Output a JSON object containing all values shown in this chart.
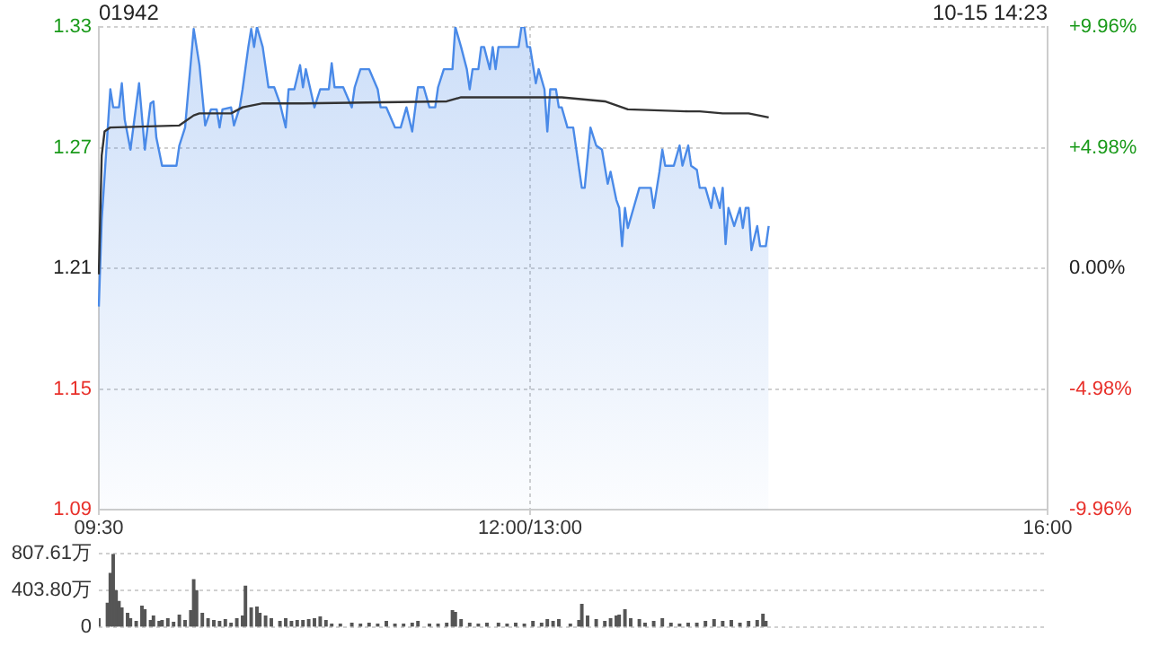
{
  "chart_data": [
    {
      "type": "line",
      "title": "01942",
      "annotations": [
        "10-15 14:23"
      ],
      "categories": [
        "09:30",
        null,
        null,
        null,
        null,
        null,
        null,
        null,
        null,
        null,
        null,
        null,
        null,
        null,
        null,
        null,
        null,
        null,
        null,
        null,
        null,
        null,
        null,
        null,
        null,
        null,
        null,
        null,
        null,
        null,
        null,
        null,
        null,
        null,
        null,
        null,
        null,
        null,
        null,
        null,
        null,
        null,
        null,
        null,
        null,
        null,
        null,
        null,
        null,
        null,
        null,
        null,
        null,
        null,
        null,
        null,
        null,
        null,
        null,
        null,
        null,
        null,
        null,
        null,
        null,
        null,
        null,
        null,
        null,
        null,
        null,
        null,
        null,
        null,
        null,
        null,
        null,
        null,
        null,
        null,
        null,
        null,
        null,
        null,
        null,
        null,
        null,
        null,
        null,
        null,
        null,
        null,
        null,
        null,
        null,
        null,
        null,
        null,
        null,
        null,
        null,
        null,
        null,
        null,
        null,
        null,
        null,
        null,
        null,
        null,
        null,
        null,
        null,
        null,
        null,
        null,
        null,
        null,
        null,
        null,
        null,
        null,
        null,
        null,
        null,
        null,
        null,
        null,
        null,
        null,
        null,
        null,
        null,
        null,
        null,
        null,
        null,
        null,
        null,
        null,
        null,
        null,
        null,
        null,
        null,
        null,
        null,
        null,
        null,
        null,
        "12:00/13:00",
        null,
        null,
        null,
        null,
        null,
        null,
        null,
        null,
        null,
        null,
        null,
        null,
        null,
        null,
        null,
        null,
        null,
        null,
        null,
        null,
        null,
        null,
        null,
        null,
        null,
        null,
        null,
        null,
        null,
        null,
        null,
        null,
        null,
        null,
        null,
        null,
        null,
        null,
        null,
        null,
        null,
        null,
        null,
        null,
        null,
        null,
        null,
        null,
        null,
        null,
        null,
        null,
        null,
        null,
        null,
        null,
        null,
        null,
        null,
        null,
        null,
        null,
        null,
        null,
        null,
        null,
        null,
        null,
        null,
        null,
        null,
        null,
        null,
        null,
        null,
        null,
        null,
        null,
        null,
        null,
        null,
        null,
        null,
        null,
        null,
        null,
        null,
        null,
        null,
        null,
        null,
        null,
        null,
        null,
        null,
        null,
        null,
        null,
        null,
        null,
        null,
        null,
        null,
        null,
        null,
        null,
        null,
        null,
        null,
        null,
        null,
        null,
        null,
        null,
        null,
        null,
        null,
        null,
        null,
        null,
        null,
        null,
        null,
        null,
        null,
        null,
        null,
        null,
        null,
        null,
        null,
        null,
        null,
        null,
        null,
        null,
        null,
        null,
        null,
        null,
        null,
        null,
        null,
        null,
        null,
        null,
        null,
        null,
        null,
        null,
        null,
        null,
        null,
        null,
        null,
        null,
        null,
        null,
        null,
        null,
        null,
        null,
        null,
        null,
        null,
        null,
        null,
        null,
        null,
        null,
        null,
        null,
        null,
        null,
        null,
        null,
        null,
        null,
        null,
        "16:00"
      ],
      "ylim": [
        1.09,
        1.33
      ],
      "yticks": [
        1.09,
        1.15,
        1.21,
        1.27,
        1.33
      ],
      "y2lim": [
        -9.96,
        9.96
      ],
      "y2ticks": [
        {
          "value": -9.96,
          "label": "-9.96%"
        },
        {
          "value": -4.98,
          "label": "-4.98%"
        },
        {
          "value": 0,
          "label": "0.00%"
        },
        {
          "value": 4.98,
          "label": "+4.98%"
        },
        {
          "value": 9.96,
          "label": "+9.96%"
        }
      ],
      "grid": true,
      "marker": "none",
      "line_style": "solid",
      "series": [
        {
          "type": "area",
          "color": "#4a8ae8",
          "values": [
            1.191,
            1.234,
            null,
            null,
            1.299,
            1.29,
            null,
            1.29,
            1.302,
            1.284,
            null,
            1.269,
            null,
            null,
            1.302,
            null,
            1.269,
            null,
            1.292,
            1.293,
            1.275,
            null,
            1.261,
            null,
            null,
            null,
            null,
            1.261,
            1.271,
            null,
            1.28,
            null,
            null,
            1.329,
            null,
            1.311,
            null,
            1.281,
            null,
            1.289,
            null,
            1.289,
            1.28,
            1.289,
            null,
            null,
            1.29,
            1.281,
            null,
            1.29,
            1.299,
            null,
            1.32,
            1.329,
            1.32,
            1.33,
            null,
            1.32,
            null,
            1.3,
            null,
            1.3,
            null,
            1.292,
            null,
            1.28,
            1.299,
            null,
            1.299,
            null,
            1.311,
            1.3,
            1.309,
            null,
            null,
            1.29,
            null,
            1.299,
            null,
            null,
            1.299,
            1.312,
            1.3,
            null,
            null,
            1.3,
            null,
            null,
            1.29,
            1.3,
            null,
            1.309,
            null,
            null,
            1.309,
            null,
            null,
            1.299,
            1.29,
            null,
            1.29,
            null,
            null,
            1.28,
            null,
            1.28,
            null,
            1.29,
            null,
            1.278,
            null,
            1.3,
            null,
            1.3,
            null,
            1.29,
            null,
            1.29,
            1.3,
            null,
            1.309,
            null,
            null,
            1.309,
            1.33,
            null,
            1.32,
            null,
            1.309,
            1.299,
            1.309,
            null,
            1.309,
            1.32,
            1.32,
            null,
            1.309,
            1.32,
            1.309,
            1.32,
            null,
            null,
            null,
            null,
            null,
            null,
            1.32,
            1.33,
            1.33,
            1.32,
            1.32,
            null,
            1.302,
            1.309,
            null,
            1.299,
            1.278,
            1.299,
            null,
            1.299,
            1.29,
            1.29,
            null,
            1.28,
            null,
            1.28,
            null,
            null,
            1.25,
            1.25,
            null,
            1.28,
            null,
            1.271,
            null,
            1.269,
            null,
            1.252,
            1.258,
            null,
            1.244,
            1.24,
            1.221,
            1.24,
            1.23,
            null,
            1.24,
            null,
            1.25,
            null,
            null,
            null,
            1.25,
            1.24,
            null,
            1.258,
            1.269,
            1.261,
            null,
            null,
            1.261,
            null,
            1.271,
            1.261,
            null,
            1.271,
            1.261,
            null,
            1.259,
            1.25,
            null,
            1.25,
            null,
            1.24,
            1.25,
            null,
            1.24,
            1.25,
            1.222,
            1.24,
            null,
            1.231,
            null,
            1.24,
            1.23,
            1.24,
            1.24,
            1.219,
            null,
            1.231,
            1.221,
            null,
            1.221,
            1.231,
            null,
            null,
            null,
            null,
            null,
            null,
            null,
            null,
            null,
            null,
            null,
            null,
            null,
            null,
            null,
            null,
            null,
            null,
            null,
            null,
            null,
            null,
            null,
            null,
            null,
            null,
            null,
            null,
            null,
            null,
            null,
            null,
            null,
            null,
            null,
            null,
            null,
            null,
            null,
            null,
            null,
            null,
            null,
            null,
            null,
            null,
            null,
            null,
            null,
            null,
            null,
            null,
            null,
            null,
            null,
            null,
            null,
            null,
            null,
            null,
            null,
            null,
            null,
            null,
            null,
            null,
            null,
            null,
            null,
            null,
            null,
            null,
            null,
            null,
            null,
            null,
            null,
            null,
            null,
            null,
            null,
            null,
            null,
            null,
            null,
            null,
            null,
            null,
            null,
            null,
            null,
            null,
            null,
            null,
            null,
            null,
            null
          ]
        },
        {
          "type": "line",
          "color": "#333333",
          "values": [
            1.207,
            1.266,
            1.278,
            null,
            1.28,
            null,
            null,
            null,
            null,
            null,
            null,
            null,
            null,
            null,
            null,
            null,
            null,
            null,
            null,
            null,
            null,
            null,
            null,
            null,
            null,
            null,
            null,
            null,
            1.281,
            null,
            null,
            null,
            null,
            1.286,
            null,
            1.287,
            null,
            null,
            null,
            null,
            null,
            null,
            null,
            null,
            null,
            null,
            1.287,
            null,
            null,
            null,
            1.29,
            null,
            null,
            null,
            null,
            null,
            null,
            1.292,
            null,
            null,
            null,
            null,
            null,
            null,
            null,
            null,
            null,
            null,
            null,
            null,
            null,
            1.292,
            null,
            null,
            null,
            null,
            null,
            null,
            null,
            null,
            null,
            null,
            null,
            null,
            null,
            null,
            null,
            null,
            null,
            null,
            null,
            null,
            null,
            null,
            null,
            null,
            null,
            null,
            null,
            null,
            null,
            null,
            null,
            null,
            null,
            null,
            null,
            null,
            null,
            null,
            null,
            null,
            null,
            null,
            null,
            null,
            null,
            null,
            null,
            null,
            null,
            1.293,
            null,
            null,
            null,
            null,
            1.295,
            null,
            null,
            null,
            null,
            null,
            null,
            null,
            null,
            null,
            null,
            null,
            null,
            null,
            null,
            null,
            null,
            null,
            null,
            null,
            null,
            null,
            null,
            null,
            null,
            null,
            null,
            null,
            null,
            null,
            null,
            null,
            null,
            null,
            null,
            1.295,
            null,
            null,
            null,
            null,
            null,
            null,
            null,
            null,
            null,
            null,
            null,
            null,
            null,
            null,
            1.293,
            null,
            null,
            null,
            null,
            null,
            1.29,
            null,
            1.289,
            null,
            null,
            null,
            null,
            null,
            null,
            null,
            null,
            null,
            null,
            null,
            null,
            null,
            null,
            null,
            null,
            null,
            null,
            null,
            null,
            1.288,
            null,
            null,
            null,
            1.288,
            null,
            null,
            null,
            null,
            null,
            null,
            null,
            1.287,
            null,
            null,
            null,
            null,
            null,
            null,
            null,
            null,
            1.287,
            null,
            null,
            null,
            null,
            null,
            null,
            1.285,
            null,
            null,
            null,
            null,
            null,
            null,
            null,
            null,
            null,
            null,
            null,
            null,
            null,
            null,
            null,
            null,
            null,
            null,
            null,
            null,
            null,
            null,
            null,
            null,
            null,
            null,
            null,
            null,
            null,
            null,
            null,
            null,
            null,
            null,
            null,
            null,
            null,
            null,
            null,
            null,
            null,
            null,
            null,
            null,
            null,
            null,
            null,
            null,
            null,
            null,
            null,
            null,
            null,
            null,
            null,
            null,
            null,
            null,
            null,
            null,
            null,
            null,
            null,
            null,
            null,
            null,
            null,
            null,
            null,
            null,
            null,
            null,
            null,
            null,
            null,
            null,
            null,
            null,
            null,
            null,
            null,
            null,
            null,
            null,
            null,
            null,
            null,
            null,
            null,
            null,
            null,
            null,
            null,
            null,
            null,
            null,
            null
          ]
        }
      ]
    },
    {
      "type": "bar",
      "color": "#555555",
      "ylim": [
        0,
        807.61
      ],
      "yticks": [
        0,
        {
          "value": 403.8,
          "label": "403.80万"
        },
        {
          "value": 807.61,
          "label": "807.61万"
        }
      ],
      "grid": "y",
      "tick_labels": "y",
      "categories": [
        null,
        null,
        null,
        null,
        null,
        null,
        null,
        null,
        null,
        null,
        null,
        null,
        null,
        null,
        null,
        null,
        null,
        null,
        null,
        null,
        null,
        null,
        null,
        null,
        null,
        null,
        null,
        null,
        null,
        null,
        null,
        null,
        null,
        null,
        null,
        null,
        null,
        null,
        null,
        null,
        null,
        null,
        null,
        null,
        null,
        null,
        null,
        null,
        null,
        null,
        null,
        null,
        null,
        null,
        null,
        null,
        null,
        null,
        null,
        null,
        null,
        null,
        null,
        null,
        null,
        null,
        null,
        null,
        null,
        null,
        null,
        null,
        null,
        null,
        null,
        null,
        null,
        null,
        null,
        null,
        null,
        null,
        null,
        null,
        null,
        null,
        null,
        null,
        null,
        null,
        null,
        null,
        null,
        null,
        null,
        null,
        null,
        null,
        null,
        null,
        null,
        null,
        null,
        null,
        null,
        null,
        null,
        null,
        null,
        null,
        null,
        null,
        null,
        null,
        null,
        null,
        null,
        null,
        null,
        null,
        null,
        null,
        null,
        null,
        null,
        null,
        null,
        null,
        null,
        null,
        null,
        null,
        null,
        null,
        null,
        null,
        null,
        null,
        null,
        null,
        null,
        null,
        null,
        null,
        null,
        null,
        null,
        null,
        null,
        null,
        null,
        null,
        null,
        null,
        null,
        null,
        null,
        null,
        null,
        null,
        null,
        null,
        null,
        null,
        null,
        null,
        null,
        null,
        null,
        null,
        null,
        null,
        null,
        null,
        null,
        null,
        null,
        null,
        null,
        null,
        null,
        null,
        null,
        null,
        null,
        null,
        null,
        null,
        null,
        null,
        null,
        null,
        null,
        null,
        null,
        null,
        null,
        null,
        null,
        null,
        null,
        null,
        null,
        null,
        null,
        null,
        null,
        null,
        null,
        null,
        null,
        null,
        null,
        null,
        null,
        null,
        null,
        null,
        null,
        null,
        null,
        null,
        null,
        null,
        null,
        null,
        null,
        null,
        null,
        null,
        null,
        null,
        null,
        null,
        null,
        null,
        null,
        null,
        null,
        null,
        null,
        null,
        null,
        null,
        null,
        null,
        null,
        null,
        null,
        null,
        null,
        null,
        null,
        null,
        null,
        null,
        null,
        null,
        null,
        null,
        null,
        null,
        null,
        null,
        null,
        null,
        null,
        null,
        null,
        null,
        null,
        null,
        null,
        null,
        null,
        null,
        null,
        null,
        null,
        null,
        null,
        null,
        null,
        null,
        null,
        null,
        null,
        null,
        null,
        null,
        null,
        null,
        null,
        null,
        null,
        null,
        null,
        null,
        null,
        null,
        null,
        null,
        null,
        null,
        null,
        null,
        null,
        null,
        null,
        null,
        null,
        null,
        null,
        null,
        null,
        null,
        null,
        null,
        null,
        null,
        null,
        null,
        null,
        null,
        null,
        null,
        null,
        null,
        null,
        null,
        null
      ],
      "values": [
        90,
        null,
        null,
        260,
        590,
        800,
        400,
        280,
        210,
        null,
        150,
        90,
        null,
        60,
        null,
        230,
        190,
        null,
        70,
        120,
        null,
        60,
        70,
        null,
        90,
        null,
        50,
        null,
        130,
        null,
        70,
        null,
        180,
        520,
        400,
        null,
        150,
        null,
        90,
        null,
        70,
        null,
        60,
        null,
        80,
        null,
        40,
        null,
        90,
        null,
        120,
        450,
        null,
        210,
        null,
        220,
        150,
        null,
        120,
        null,
        90,
        null,
        null,
        60,
        null,
        90,
        null,
        60,
        null,
        70,
        null,
        70,
        null,
        80,
        null,
        90,
        null,
        110,
        null,
        70,
        null,
        30,
        null,
        null,
        30,
        null,
        null,
        null,
        40,
        null,
        null,
        30,
        null,
        null,
        40,
        null,
        null,
        30,
        null,
        null,
        60,
        null,
        null,
        30,
        null,
        null,
        30,
        null,
        null,
        40,
        null,
        60,
        null,
        null,
        null,
        30,
        null,
        null,
        30,
        null,
        null,
        40,
        null,
        180,
        160,
        null,
        80,
        null,
        null,
        40,
        null,
        null,
        30,
        null,
        null,
        40,
        null,
        null,
        null,
        40,
        null,
        null,
        30,
        null,
        null,
        40,
        null,
        null,
        30,
        null,
        null,
        60,
        null,
        null,
        40,
        null,
        80,
        null,
        60,
        null,
        80,
        null,
        null,
        null,
        30,
        null,
        null,
        70,
        250,
        null,
        120,
        null,
        null,
        80,
        null,
        null,
        60,
        null,
        90,
        null,
        120,
        130,
        null,
        190,
        null,
        90,
        null,
        null,
        80,
        null,
        40,
        null,
        null,
        60,
        null,
        null,
        90,
        null,
        null,
        40,
        null,
        null,
        30,
        null,
        null,
        40,
        null,
        null,
        40,
        null,
        null,
        60,
        null,
        null,
        80,
        null,
        null,
        60,
        null,
        null,
        70,
        null,
        null,
        40,
        null,
        null,
        60,
        null,
        null,
        70,
        null,
        140,
        60,
        null,
        null,
        null,
        null,
        null,
        null,
        null,
        null,
        null,
        null,
        null,
        null,
        null,
        null,
        null,
        null,
        null,
        null,
        null,
        null,
        null,
        null,
        null,
        null,
        null,
        null,
        null,
        null,
        null,
        null,
        null,
        null,
        null,
        null,
        null,
        null,
        null,
        null,
        null,
        null,
        null,
        null,
        null,
        null,
        null,
        null,
        null,
        null,
        null,
        null,
        null,
        null,
        null,
        null,
        null,
        null,
        null,
        null,
        null,
        null,
        null,
        null,
        null,
        null,
        null,
        null,
        null,
        null,
        null,
        null,
        null,
        null,
        null,
        null,
        null,
        null,
        null,
        null,
        null,
        null,
        null,
        null,
        null,
        null,
        null,
        null,
        null,
        null,
        null,
        null,
        null,
        null,
        null,
        null,
        null,
        null,
        null,
        null
      ]
    }
  ]
}
